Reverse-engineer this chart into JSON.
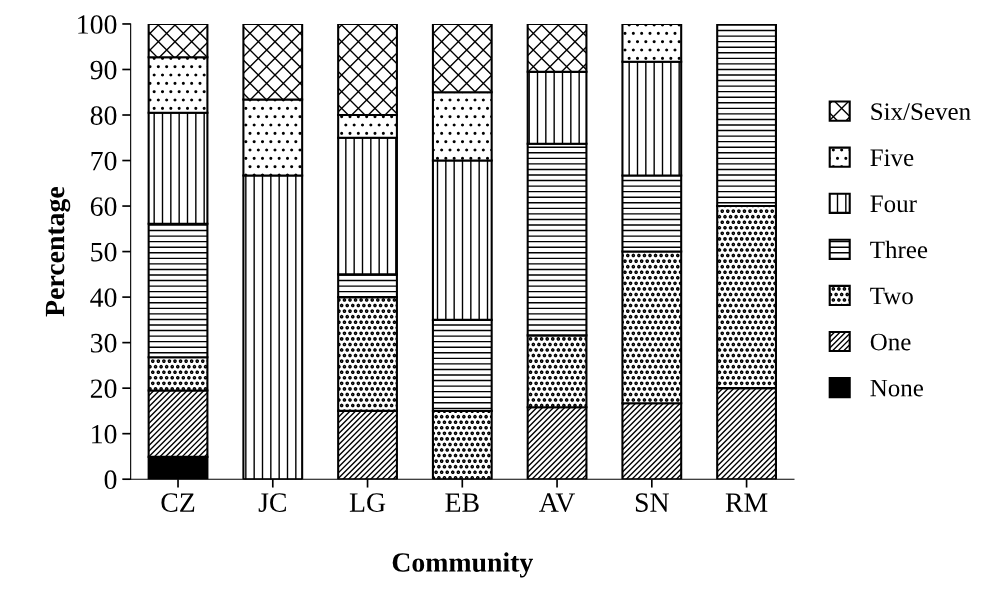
{
  "chart_data": {
    "type": "bar",
    "stacked": true,
    "xlabel": "Community",
    "ylabel": "Percentage",
    "categories": [
      "CZ",
      "JC",
      "LG",
      "EB",
      "AV",
      "SN",
      "RM"
    ],
    "ylim": [
      0,
      100
    ],
    "yticks": [
      0,
      10,
      20,
      30,
      40,
      50,
      60,
      70,
      80,
      90,
      100
    ],
    "grid": false,
    "legend": "right",
    "series": [
      {
        "name": "None",
        "color": "#000000",
        "values": [
          4.9,
          0,
          0,
          0,
          0,
          0,
          0
        ]
      },
      {
        "name": "One",
        "color": "#000000",
        "values": [
          14.6,
          0,
          15,
          0,
          15.8,
          16.7,
          20
        ]
      },
      {
        "name": "Two",
        "color": "#000000",
        "values": [
          7.3,
          0,
          25,
          15,
          15.8,
          33.3,
          40
        ]
      },
      {
        "name": "Three",
        "color": "#000000",
        "values": [
          29.3,
          0,
          5,
          20,
          42.1,
          16.7,
          40
        ]
      },
      {
        "name": "Four",
        "color": "#000000",
        "values": [
          24.4,
          66.7,
          30,
          35,
          15.8,
          25,
          0
        ]
      },
      {
        "name": "Five",
        "color": "#000000",
        "values": [
          12.2,
          16.7,
          5,
          15,
          0,
          8.3,
          0
        ]
      },
      {
        "name": "Six/Seven",
        "color": "#000000",
        "values": [
          7.3,
          16.6,
          20,
          15,
          10.5,
          0,
          0
        ]
      }
    ]
  }
}
